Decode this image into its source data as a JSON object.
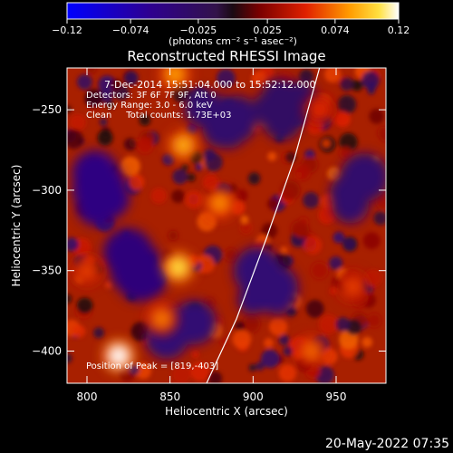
{
  "chart_data": {
    "type": "heatmap",
    "title": "Reconstructed RHESSI Image",
    "xlabel": "Heliocentric X (arcsec)",
    "ylabel": "Heliocentric Y (arcsec)",
    "xlim": [
      788,
      980
    ],
    "ylim": [
      -420,
      -224
    ],
    "x_ticks": [
      800,
      850,
      900,
      950
    ],
    "y_ticks": [
      -250,
      -300,
      -350,
      -400
    ],
    "x_tick_labels": [
      "800",
      "850",
      "900",
      "950"
    ],
    "y_tick_labels": [
      "−250",
      "−300",
      "−350",
      "−400"
    ],
    "colorbar": {
      "range": [
        -0.12,
        0.12
      ],
      "ticks": [
        -0.12,
        -0.074,
        -0.025,
        0.025,
        0.074,
        0.12
      ],
      "tick_labels": [
        "−0.12",
        "−0.074",
        "−0.025",
        "0.025",
        "0.074",
        "0.12"
      ],
      "units_label": "(photons cm⁻² s⁻¹ asec⁻²)"
    },
    "annotations": [
      "7-Dec-2014 15:51:04.000 to 15:52:12.000",
      "Detectors: 3F 6F 7F 9F, Att 0",
      "Energy Range: 3.0 - 6.0 keV",
      "Clean     Total counts: 1.73E+03"
    ],
    "peak_label": "Position of Peak = [819,-403]",
    "peak": [
      819,
      -403
    ],
    "hot_spots": [
      {
        "x": 819,
        "y": -403,
        "value": 0.12
      },
      {
        "x": 855,
        "y": -348,
        "value": 0.105
      },
      {
        "x": 858,
        "y": -272,
        "value": 0.09
      },
      {
        "x": 853,
        "y": -228,
        "value": 0.085
      },
      {
        "x": 880,
        "y": -308,
        "value": 0.08
      },
      {
        "x": 845,
        "y": -380,
        "value": 0.075
      },
      {
        "x": 800,
        "y": -350,
        "value": 0.06
      },
      {
        "x": 935,
        "y": -400,
        "value": 0.07
      },
      {
        "x": 960,
        "y": -360,
        "value": 0.06
      },
      {
        "x": 940,
        "y": -250,
        "value": 0.055
      }
    ],
    "cold_spots": [
      {
        "x": 810,
        "y": -300,
        "value": -0.05
      },
      {
        "x": 825,
        "y": -350,
        "value": -0.045
      },
      {
        "x": 855,
        "y": -390,
        "value": -0.04
      },
      {
        "x": 905,
        "y": -360,
        "value": -0.04
      },
      {
        "x": 880,
        "y": -255,
        "value": -0.035
      },
      {
        "x": 920,
        "y": -250,
        "value": -0.03
      },
      {
        "x": 960,
        "y": -300,
        "value": -0.035
      }
    ],
    "limb_curve": [
      [
        872,
        -420
      ],
      [
        890,
        -380
      ],
      [
        908,
        -330
      ],
      [
        925,
        -280
      ],
      [
        940,
        -224
      ]
    ],
    "grid": false,
    "legend": "none"
  },
  "footer": {
    "date_label": "20-May-2022 07:35"
  }
}
